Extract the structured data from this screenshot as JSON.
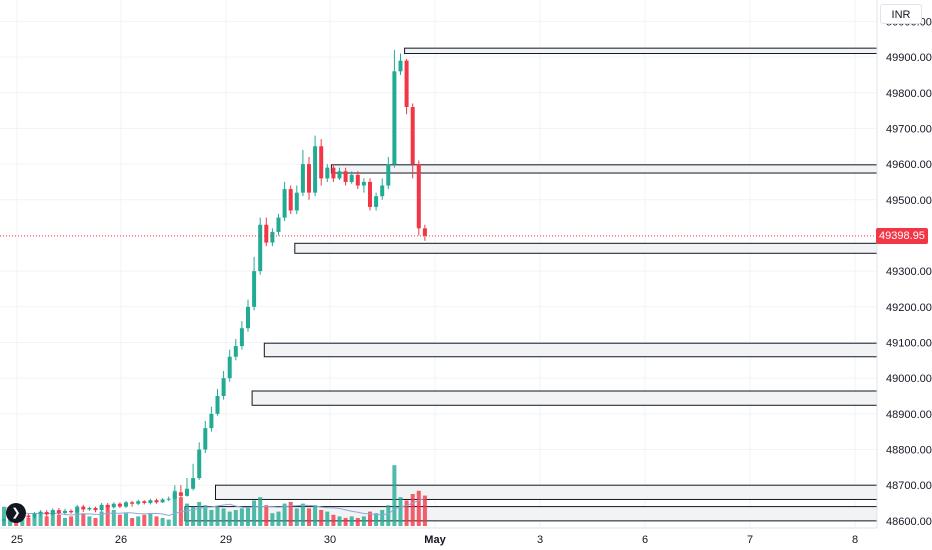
{
  "currency": "INR",
  "last_price": "49398.95",
  "colors": {
    "up": "#22ab94",
    "down": "#f23645",
    "zone_fill": "#f2f3f5",
    "zone_stroke": "#131722",
    "grid": "#f0f3fa",
    "axis_text": "#131722",
    "price_line": "#f23645",
    "volume_ma": "#8fa8d9"
  },
  "chart_data": {
    "type": "candlestick",
    "y_ticks": [
      "50000.00",
      "49900.00",
      "49800.00",
      "49700.00",
      "49600.00",
      "49500.00",
      "49300.00",
      "49200.00",
      "49100.00",
      "49000.00",
      "48900.00",
      "48800.00",
      "48700.00",
      "48600.00"
    ],
    "y_tick_values": [
      50000,
      49900,
      49800,
      49700,
      49600,
      49500,
      49300,
      49200,
      49100,
      49000,
      48900,
      48800,
      48700,
      48600
    ],
    "ylim": [
      48580,
      50060
    ],
    "x_tick_labels": [
      "25",
      "26",
      "29",
      "30",
      "May",
      "3",
      "6",
      "7",
      "8"
    ],
    "grid": true,
    "last_price": 49398.95,
    "zones": [
      {
        "from_candle": 66,
        "low": 49910,
        "high": 49925
      },
      {
        "from_candle": 54,
        "low": 49575,
        "high": 49598
      },
      {
        "from_candle": 48,
        "low": 49350,
        "high": 49378
      },
      {
        "from_candle": 43,
        "low": 49060,
        "high": 49098
      },
      {
        "from_candle": 41,
        "low": 48924,
        "high": 48964
      },
      {
        "from_candle": 35,
        "low": 48660,
        "high": 48700
      },
      {
        "from_candle": 30,
        "low": 48600,
        "high": 48640
      }
    ],
    "candles": [
      [
        48600,
        48605,
        48590,
        48610,
        1.2
      ],
      [
        48605,
        48612,
        48598,
        48618,
        0.9
      ],
      [
        48612,
        48608,
        48600,
        48620,
        0.7
      ],
      [
        48608,
        48615,
        48602,
        48622,
        0.6
      ],
      [
        48615,
        48610,
        48605,
        48620,
        0.5
      ],
      [
        48610,
        48620,
        48605,
        48625,
        0.8
      ],
      [
        48620,
        48625,
        48612,
        48630,
        0.9
      ],
      [
        48625,
        48618,
        48610,
        48630,
        0.6
      ],
      [
        48618,
        48630,
        48615,
        48635,
        1.0
      ],
      [
        48630,
        48622,
        48616,
        48636,
        0.7
      ],
      [
        48622,
        48628,
        48618,
        48634,
        0.5
      ],
      [
        48628,
        48624,
        48620,
        48632,
        0.6
      ],
      [
        48624,
        48640,
        48620,
        48645,
        1.1
      ],
      [
        48640,
        48632,
        48625,
        48645,
        0.8
      ],
      [
        48632,
        48636,
        48628,
        48640,
        0.6
      ],
      [
        48636,
        48630,
        48624,
        48640,
        0.5
      ],
      [
        48630,
        48645,
        48626,
        48650,
        0.9
      ],
      [
        48645,
        48638,
        48630,
        48650,
        1.3
      ],
      [
        48638,
        48648,
        48634,
        48652,
        1.0
      ],
      [
        48648,
        48640,
        48636,
        48652,
        0.7
      ],
      [
        48640,
        48652,
        48636,
        48656,
        0.8
      ],
      [
        48652,
        48648,
        48640,
        48656,
        0.5
      ],
      [
        48648,
        48655,
        48644,
        48660,
        0.6
      ],
      [
        48655,
        48650,
        48646,
        48658,
        0.7
      ],
      [
        48650,
        48658,
        48646,
        48662,
        0.8
      ],
      [
        48658,
        48652,
        48648,
        48662,
        0.6
      ],
      [
        48652,
        48660,
        48650,
        48664,
        0.5
      ],
      [
        48660,
        48662,
        48655,
        48668,
        0.4
      ],
      [
        48662,
        48680,
        48660,
        48700,
        2.2
      ],
      [
        48680,
        48670,
        48665,
        48700,
        1.8
      ],
      [
        48670,
        48690,
        48668,
        48720,
        1.4
      ],
      [
        48690,
        48720,
        48685,
        48760,
        1.2
      ],
      [
        48720,
        48800,
        48715,
        48820,
        1.5
      ],
      [
        48800,
        48860,
        48790,
        48880,
        1.3
      ],
      [
        48860,
        48900,
        48850,
        48920,
        1.0
      ],
      [
        48900,
        48950,
        48895,
        48970,
        1.2
      ],
      [
        48950,
        49000,
        48940,
        49020,
        1.1
      ],
      [
        49000,
        49060,
        48990,
        49080,
        0.9
      ],
      [
        49060,
        49090,
        49050,
        49110,
        1.0
      ],
      [
        49090,
        49140,
        49080,
        49160,
        1.1
      ],
      [
        49140,
        49200,
        49130,
        49220,
        1.2
      ],
      [
        49200,
        49300,
        49190,
        49340,
        1.6
      ],
      [
        49300,
        49430,
        49290,
        49450,
        1.8
      ],
      [
        49430,
        49380,
        49370,
        49450,
        1.3
      ],
      [
        49380,
        49410,
        49370,
        49420,
        0.8
      ],
      [
        49410,
        49450,
        49400,
        49460,
        0.9
      ],
      [
        49450,
        49530,
        49440,
        49550,
        1.4
      ],
      [
        49530,
        49470,
        49460,
        49540,
        1.5
      ],
      [
        49470,
        49520,
        49460,
        49540,
        1.1
      ],
      [
        49520,
        49600,
        49510,
        49640,
        1.4
      ],
      [
        49600,
        49520,
        49500,
        49620,
        1.1
      ],
      [
        49520,
        49650,
        49510,
        49680,
        1.3
      ],
      [
        49650,
        49560,
        49540,
        49670,
        1.0
      ],
      [
        49560,
        49590,
        49550,
        49600,
        0.9
      ],
      [
        49590,
        49560,
        49550,
        49600,
        0.7
      ],
      [
        49560,
        49580,
        49555,
        49590,
        0.6
      ],
      [
        49580,
        49550,
        49540,
        49590,
        0.5
      ],
      [
        49550,
        49570,
        49545,
        49580,
        0.6
      ],
      [
        49570,
        49540,
        49530,
        49580,
        0.5
      ],
      [
        49540,
        49550,
        49520,
        49560,
        0.6
      ],
      [
        49550,
        49480,
        49470,
        49560,
        0.9
      ],
      [
        49480,
        49510,
        49470,
        49520,
        0.8
      ],
      [
        49510,
        49540,
        49500,
        49560,
        1.0
      ],
      [
        49540,
        49600,
        49530,
        49620,
        1.3
      ],
      [
        49600,
        49860,
        49590,
        49920,
        3.8
      ],
      [
        49860,
        49890,
        49850,
        49910,
        1.8
      ],
      [
        49890,
        49760,
        49740,
        49895,
        1.6
      ],
      [
        49760,
        49600,
        49560,
        49770,
        2.0
      ],
      [
        49600,
        49420,
        49400,
        49610,
        2.2
      ],
      [
        49420,
        49399,
        49385,
        49430,
        1.9
      ]
    ]
  }
}
